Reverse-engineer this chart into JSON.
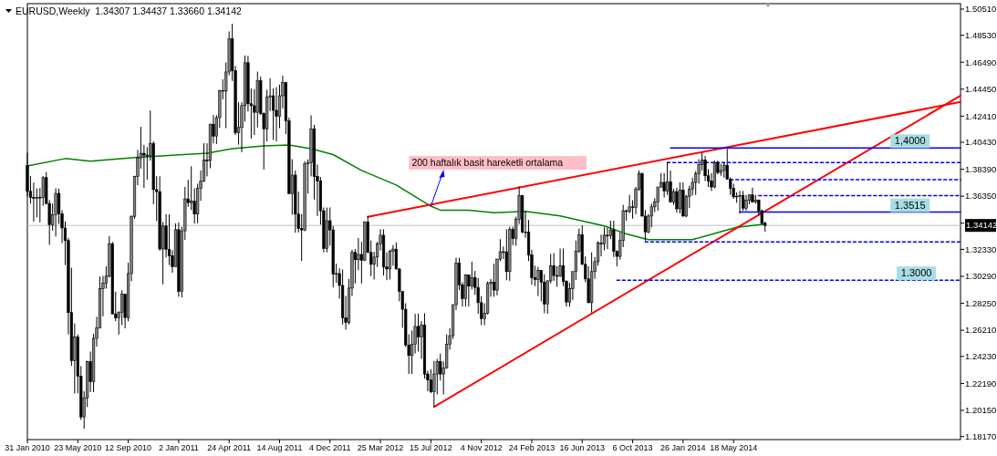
{
  "chart_data": {
    "type": "candlestick",
    "title": "EURUSD,Weekly  1.34307 1.34437 1.33660 1.34142",
    "xlim": [
      "2010-01-31",
      "2015-10-04"
    ],
    "ylim": [
      1.1794,
      1.5092
    ],
    "xticks": [
      {
        "value": "2010-01-31",
        "label": "31 Jan 2010"
      },
      {
        "value": "2010-05-23",
        "label": "23 May 2010"
      },
      {
        "value": "2010-09-12",
        "label": "12 Sep 2010"
      },
      {
        "value": "2011-01-02",
        "label": "2 Jan 2011"
      },
      {
        "value": "2011-04-24",
        "label": "24 Apr 2011"
      },
      {
        "value": "2011-08-14",
        "label": "14 Aug 2011"
      },
      {
        "value": "2011-12-04",
        "label": "4 Dec 2011"
      },
      {
        "value": "2012-03-25",
        "label": "25 Mar 2012"
      },
      {
        "value": "2012-07-15",
        "label": "15 Jul 2012"
      },
      {
        "value": "2012-11-04",
        "label": "4 Nov 2012"
      },
      {
        "value": "2013-02-24",
        "label": "24 Feb 2013"
      },
      {
        "value": "2013-06-16",
        "label": "16 Jun 2013"
      },
      {
        "value": "2013-10-06",
        "label": "6 Oct 2013"
      },
      {
        "value": "2014-01-26",
        "label": "26 Jan 2014"
      },
      {
        "value": "2014-05-18",
        "label": "18 May 2014"
      }
    ],
    "yticks": [
      {
        "value": 1.5051,
        "label": "1.50510"
      },
      {
        "value": 1.4853,
        "label": "1.48530"
      },
      {
        "value": 1.4649,
        "label": "1.46490"
      },
      {
        "value": 1.4445,
        "label": "1.44450"
      },
      {
        "value": 1.4241,
        "label": "1.42410"
      },
      {
        "value": 1.4043,
        "label": "1.40430"
      },
      {
        "value": 1.3839,
        "label": "1.38390"
      },
      {
        "value": 1.3635,
        "label": "1.36350"
      },
      {
        "value": 1.3431,
        "label": null
      },
      {
        "value": 1.3233,
        "label": "1.32330"
      },
      {
        "value": 1.3029,
        "label": "1.30290"
      },
      {
        "value": 1.2825,
        "label": "1.28250"
      },
      {
        "value": 1.2621,
        "label": "1.26210"
      },
      {
        "value": 1.2423,
        "label": "1.24230"
      },
      {
        "value": 1.2219,
        "label": "1.22190"
      },
      {
        "value": 1.2015,
        "label": "1.20150"
      },
      {
        "value": 1.1817,
        "label": "1.18170"
      }
    ],
    "ref_lines": [
      {
        "axis": "y",
        "value": 1.34142,
        "label": "1.34142",
        "color": "#c0c0c0"
      }
    ],
    "annotations": [
      {
        "text": "200 haftalık basit hareketli ortalama",
        "x": "2012-07-15",
        "y": 1.356
      },
      {
        "text": "1,4000",
        "x": "2015-06-14",
        "y": 1.4
      },
      {
        "text": "1.3515",
        "x": "2015-06-14",
        "y": 1.3515
      },
      {
        "text": "1.3000",
        "x": "2015-06-28",
        "y": 1.3
      }
    ],
    "series": [
      {
        "type": "line",
        "color": "#008000",
        "x": [
          "2010-01-31",
          "2010-04-25",
          "2010-06-20",
          "2010-09-26",
          "2010-12-26",
          "2011-03-06",
          "2011-05-01",
          "2011-07-10",
          "2011-09-04",
          "2011-10-23",
          "2011-12-11",
          "2012-02-12",
          "2012-04-29",
          "2012-07-15",
          "2012-08-05",
          "2012-10-07",
          "2012-12-02",
          "2013-02-10",
          "2013-04-28",
          "2013-08-04",
          "2013-09-22",
          "2013-11-10",
          "2014-02-16",
          "2014-04-13",
          "2014-05-25",
          "2014-07-27"
        ],
        "values": [
          1.3864,
          1.392,
          1.39,
          1.3927,
          1.3947,
          1.396,
          1.3995,
          1.4016,
          1.4023,
          1.3995,
          1.395,
          1.383,
          1.372,
          1.356,
          1.353,
          1.353,
          1.351,
          1.352,
          1.3486,
          1.341,
          1.335,
          1.3307,
          1.3307,
          1.336,
          1.34,
          1.3424
        ]
      },
      {
        "type": "line",
        "color": "#ff0000",
        "line_style": "solid",
        "x": [
          "2012-02-26",
          "2015-10-04"
        ],
        "values": [
          1.3479,
          1.4348
        ]
      },
      {
        "type": "line",
        "color": "#ff0000",
        "line_style": "solid",
        "x": [
          "2012-07-22",
          "2015-10-04"
        ],
        "values": [
          1.2042,
          1.4396
        ]
      },
      {
        "type": "line",
        "color": "#0000ff",
        "line_style": "solid",
        "x": [
          "2013-12-29",
          "2015-10-04"
        ],
        "values": [
          1.4,
          1.4
        ]
      },
      {
        "type": "line",
        "color": "#0000ff",
        "line_style": "dashed",
        "x": [
          "2013-12-22",
          "2015-10-04"
        ],
        "values": [
          1.389,
          1.389
        ]
      },
      {
        "type": "line",
        "color": "#0000ff",
        "line_style": "dashed",
        "x": [
          "2014-05-11",
          "2015-10-04"
        ],
        "values": [
          1.376,
          1.376
        ]
      },
      {
        "type": "line",
        "color": "#0000ff",
        "line_style": "dashed",
        "x": [
          "2014-07-13",
          "2015-10-04"
        ],
        "values": [
          1.364,
          1.364
        ]
      },
      {
        "type": "line",
        "color": "#0000ff",
        "line_style": "solid",
        "x": [
          "2014-06-01",
          "2015-10-04"
        ],
        "values": [
          1.3515,
          1.3515
        ]
      },
      {
        "type": "line",
        "color": "#0000ff",
        "line_style": "dashed",
        "x": [
          "2013-11-03",
          "2015-10-04"
        ],
        "values": [
          1.329,
          1.329
        ]
      },
      {
        "type": "line",
        "color": "#0000ff",
        "line_style": "dashed",
        "x": [
          "2013-09-01",
          "2015-10-04"
        ],
        "values": [
          1.3,
          1.3
        ]
      },
      {
        "color": "#000000",
        "x": [
          "2010-01-31",
          "2010-02-07",
          "2010-02-14",
          "2010-02-21",
          "2010-02-28",
          "2010-03-07",
          "2010-03-14",
          "2010-03-21",
          "2010-03-28",
          "2010-04-04",
          "2010-04-11",
          "2010-04-18",
          "2010-04-25",
          "2010-05-02",
          "2010-05-09",
          "2010-05-16",
          "2010-05-23",
          "2010-05-30",
          "2010-06-06",
          "2010-06-13",
          "2010-06-20",
          "2010-06-27",
          "2010-07-04",
          "2010-07-11",
          "2010-07-18",
          "2010-07-25",
          "2010-08-01",
          "2010-08-08",
          "2010-08-15",
          "2010-08-22",
          "2010-08-29",
          "2010-09-05",
          "2010-09-12",
          "2010-09-19",
          "2010-09-26",
          "2010-10-03",
          "2010-10-10",
          "2010-10-17",
          "2010-10-24",
          "2010-10-31",
          "2010-11-07",
          "2010-11-14",
          "2010-11-21",
          "2010-11-28",
          "2010-12-05",
          "2010-12-12",
          "2010-12-19",
          "2010-12-26",
          "2011-01-02",
          "2011-01-09",
          "2011-01-16",
          "2011-01-23",
          "2011-01-30",
          "2011-02-06",
          "2011-02-13",
          "2011-02-20",
          "2011-02-27",
          "2011-03-06",
          "2011-03-13",
          "2011-03-20",
          "2011-03-27",
          "2011-04-03",
          "2011-04-10",
          "2011-04-17",
          "2011-04-24",
          "2011-05-01",
          "2011-05-08",
          "2011-05-15",
          "2011-05-22",
          "2011-05-29",
          "2011-06-05",
          "2011-06-12",
          "2011-06-19",
          "2011-06-26",
          "2011-07-03",
          "2011-07-10",
          "2011-07-17",
          "2011-07-24",
          "2011-07-31",
          "2011-08-07",
          "2011-08-14",
          "2011-08-21",
          "2011-08-28",
          "2011-09-04",
          "2011-09-11",
          "2011-09-18",
          "2011-09-25",
          "2011-10-02",
          "2011-10-09",
          "2011-10-16",
          "2011-10-23",
          "2011-10-30",
          "2011-11-06",
          "2011-11-13",
          "2011-11-20",
          "2011-11-27",
          "2011-12-04",
          "2011-12-11",
          "2011-12-18",
          "2011-12-25",
          "2012-01-01",
          "2012-01-08",
          "2012-01-15",
          "2012-01-22",
          "2012-01-29",
          "2012-02-05",
          "2012-02-12",
          "2012-02-19",
          "2012-02-26",
          "2012-03-04",
          "2012-03-11",
          "2012-03-18",
          "2012-03-25",
          "2012-04-01",
          "2012-04-08",
          "2012-04-15",
          "2012-04-22",
          "2012-04-29",
          "2012-05-06",
          "2012-05-13",
          "2012-05-20",
          "2012-05-27",
          "2012-06-03",
          "2012-06-10",
          "2012-06-17",
          "2012-06-24",
          "2012-07-01",
          "2012-07-08",
          "2012-07-15",
          "2012-07-22",
          "2012-07-29",
          "2012-08-05",
          "2012-08-12",
          "2012-08-19",
          "2012-08-26",
          "2012-09-02",
          "2012-09-09",
          "2012-09-16",
          "2012-09-23",
          "2012-09-30",
          "2012-10-07",
          "2012-10-14",
          "2012-10-21",
          "2012-10-28",
          "2012-11-04",
          "2012-11-11",
          "2012-11-18",
          "2012-11-25",
          "2012-12-02",
          "2012-12-09",
          "2012-12-16",
          "2012-12-23",
          "2012-12-30",
          "2013-01-06",
          "2013-01-13",
          "2013-01-20",
          "2013-01-27",
          "2013-02-03",
          "2013-02-10",
          "2013-02-17",
          "2013-02-24",
          "2013-03-03",
          "2013-03-10",
          "2013-03-17",
          "2013-03-24",
          "2013-03-31",
          "2013-04-07",
          "2013-04-14",
          "2013-04-21",
          "2013-04-28",
          "2013-05-05",
          "2013-05-12",
          "2013-05-19",
          "2013-05-26",
          "2013-06-02",
          "2013-06-09",
          "2013-06-16",
          "2013-06-23",
          "2013-06-30",
          "2013-07-07",
          "2013-07-14",
          "2013-07-21",
          "2013-07-28",
          "2013-08-04",
          "2013-08-11",
          "2013-08-18",
          "2013-08-25",
          "2013-09-01",
          "2013-09-08",
          "2013-09-15",
          "2013-09-22",
          "2013-09-29",
          "2013-10-06",
          "2013-10-13",
          "2013-10-20",
          "2013-10-27",
          "2013-11-03",
          "2013-11-10",
          "2013-11-17",
          "2013-11-24",
          "2013-12-01",
          "2013-12-08",
          "2013-12-15",
          "2013-12-22",
          "2013-12-29",
          "2014-01-05",
          "2014-01-12",
          "2014-01-19",
          "2014-01-26",
          "2014-02-02",
          "2014-02-09",
          "2014-02-16",
          "2014-02-23",
          "2014-03-02",
          "2014-03-09",
          "2014-03-16",
          "2014-03-23",
          "2014-03-30",
          "2014-04-06",
          "2014-04-13",
          "2014-04-20",
          "2014-04-27",
          "2014-05-04",
          "2014-05-11",
          "2014-05-18",
          "2014-05-25",
          "2014-06-01",
          "2014-06-08",
          "2014-06-15",
          "2014-06-22",
          "2014-06-29",
          "2014-07-06",
          "2014-07-13",
          "2014-07-20",
          "2014-07-27"
        ],
        "ohlc": [
          [
            1.3867,
            1.3964,
            1.3634,
            1.3672
          ],
          [
            1.3672,
            1.3788,
            1.3579,
            1.3625
          ],
          [
            1.3625,
            1.3738,
            1.3443,
            1.362
          ],
          [
            1.362,
            1.3694,
            1.3476,
            1.3627
          ],
          [
            1.3627,
            1.3696,
            1.3437,
            1.3624
          ],
          [
            1.3624,
            1.3787,
            1.3563,
            1.3776
          ],
          [
            1.3776,
            1.3819,
            1.3574,
            1.358
          ],
          [
            1.358,
            1.3605,
            1.3267,
            1.342
          ],
          [
            1.342,
            1.358,
            1.3374,
            1.3495
          ],
          [
            1.3495,
            1.3695,
            1.333,
            1.3657
          ],
          [
            1.3657,
            1.3692,
            1.3426,
            1.3502
          ],
          [
            1.3502,
            1.353,
            1.328,
            1.3395
          ],
          [
            1.3395,
            1.3445,
            1.3114,
            1.33
          ],
          [
            1.33,
            1.332,
            1.259,
            1.2755
          ],
          [
            1.2755,
            1.3094,
            1.2352,
            1.239
          ],
          [
            1.239,
            1.2673,
            1.2143,
            1.257
          ],
          [
            1.257,
            1.259,
            1.2144,
            1.2273
          ],
          [
            1.2273,
            1.235,
            1.1943,
            1.1965
          ],
          [
            1.1965,
            1.216,
            1.1876,
            1.211
          ],
          [
            1.211,
            1.239,
            1.204,
            1.2385
          ],
          [
            1.2385,
            1.246,
            1.2154,
            1.2233
          ],
          [
            1.2233,
            1.2594,
            1.2153,
            1.256
          ],
          [
            1.256,
            1.2723,
            1.2498,
            1.264
          ],
          [
            1.264,
            1.3028,
            1.2634,
            1.2935
          ],
          [
            1.2935,
            1.3032,
            1.2727,
            1.2977
          ],
          [
            1.2977,
            1.3105,
            1.2936,
            1.303
          ],
          [
            1.303,
            1.3334,
            1.302,
            1.3276
          ],
          [
            1.3276,
            1.329,
            1.2741,
            1.2745
          ],
          [
            1.2745,
            1.2913,
            1.269,
            1.2714
          ],
          [
            1.2714,
            1.2765,
            1.2588,
            1.2758
          ],
          [
            1.2758,
            1.2924,
            1.266,
            1.2894
          ],
          [
            1.2894,
            1.2897,
            1.2636,
            1.2717
          ],
          [
            1.2717,
            1.3132,
            1.2689,
            1.305
          ],
          [
            1.305,
            1.349,
            1.2992,
            1.3483
          ],
          [
            1.3483,
            1.379,
            1.3463,
            1.3785
          ],
          [
            1.3785,
            1.3985,
            1.3719,
            1.3925
          ],
          [
            1.3925,
            1.416,
            1.3844,
            1.396
          ],
          [
            1.396,
            1.4024,
            1.3698,
            1.3946
          ],
          [
            1.3946,
            1.4006,
            1.376,
            1.3945
          ],
          [
            1.3945,
            1.4283,
            1.3904,
            1.4035
          ],
          [
            1.4035,
            1.405,
            1.3575,
            1.3685
          ],
          [
            1.3685,
            1.3787,
            1.3447,
            1.367
          ],
          [
            1.367,
            1.3786,
            1.3222,
            1.3236
          ],
          [
            1.3236,
            1.3441,
            1.2969,
            1.341
          ],
          [
            1.341,
            1.35,
            1.3172,
            1.3234
          ],
          [
            1.3234,
            1.3499,
            1.3115,
            1.3185
          ],
          [
            1.3185,
            1.3226,
            1.3057,
            1.3103
          ],
          [
            1.3103,
            1.343,
            1.31,
            1.3382
          ],
          [
            1.3382,
            1.3437,
            1.2875,
            1.2915
          ],
          [
            1.2915,
            1.3404,
            1.287,
            1.3374
          ],
          [
            1.3374,
            1.3705,
            1.3305,
            1.3615
          ],
          [
            1.3615,
            1.3759,
            1.3555,
            1.3587
          ],
          [
            1.3587,
            1.3862,
            1.353,
            1.3597
          ],
          [
            1.3597,
            1.3695,
            1.3428,
            1.35
          ],
          [
            1.35,
            1.373,
            1.343,
            1.3695
          ],
          [
            1.3695,
            1.383,
            1.36,
            1.375
          ],
          [
            1.375,
            1.4036,
            1.3742,
            1.3908
          ],
          [
            1.3908,
            1.4035,
            1.3785,
            1.3905
          ],
          [
            1.3905,
            1.4184,
            1.3846,
            1.418
          ],
          [
            1.418,
            1.425,
            1.4034,
            1.409
          ],
          [
            1.409,
            1.4248,
            1.403,
            1.423
          ],
          [
            1.423,
            1.444,
            1.4153,
            1.4435
          ],
          [
            1.4435,
            1.4519,
            1.4369,
            1.443
          ],
          [
            1.443,
            1.4648,
            1.415,
            1.4575
          ],
          [
            1.4575,
            1.4882,
            1.455,
            1.4825
          ],
          [
            1.4825,
            1.494,
            1.4507,
            1.4585
          ],
          [
            1.4585,
            1.462,
            1.4098,
            1.4115
          ],
          [
            1.4115,
            1.4346,
            1.4025,
            1.4155
          ],
          [
            1.4155,
            1.4346,
            1.3968,
            1.432
          ],
          [
            1.432,
            1.47,
            1.42,
            1.4645
          ],
          [
            1.4645,
            1.4697,
            1.4275,
            1.4335
          ],
          [
            1.4335,
            1.445,
            1.407,
            1.432
          ],
          [
            1.432,
            1.4445,
            1.4098,
            1.427
          ],
          [
            1.427,
            1.4578,
            1.4155,
            1.451
          ],
          [
            1.451,
            1.454,
            1.425,
            1.426
          ],
          [
            1.426,
            1.427,
            1.3837,
            1.4145
          ],
          [
            1.4145,
            1.444,
            1.405,
            1.4385
          ],
          [
            1.4385,
            1.4528,
            1.428,
            1.4395
          ],
          [
            1.4395,
            1.4451,
            1.406,
            1.4285
          ],
          [
            1.4285,
            1.446,
            1.405,
            1.424
          ],
          [
            1.424,
            1.448,
            1.415,
            1.4395
          ],
          [
            1.4395,
            1.4547,
            1.43,
            1.4495
          ],
          [
            1.4495,
            1.45,
            1.4105,
            1.4205
          ],
          [
            1.4205,
            1.423,
            1.3655,
            1.3655
          ],
          [
            1.3655,
            1.3915,
            1.3495,
            1.3795
          ],
          [
            1.3795,
            1.383,
            1.336,
            1.35
          ],
          [
            1.35,
            1.367,
            1.336,
            1.339
          ],
          [
            1.339,
            1.35,
            1.3145,
            1.338
          ],
          [
            1.338,
            1.39,
            1.337,
            1.388
          ],
          [
            1.388,
            1.3914,
            1.3655,
            1.389
          ],
          [
            1.389,
            1.4247,
            1.3785,
            1.4145
          ],
          [
            1.4145,
            1.4175,
            1.361,
            1.3785
          ],
          [
            1.3785,
            1.3875,
            1.3485,
            1.375
          ],
          [
            1.375,
            1.378,
            1.342,
            1.3525
          ],
          [
            1.3525,
            1.355,
            1.321,
            1.324
          ],
          [
            1.324,
            1.355,
            1.321,
            1.345
          ],
          [
            1.345,
            1.355,
            1.326,
            1.338
          ],
          [
            1.338,
            1.341,
            1.2945,
            1.3045
          ],
          [
            1.3045,
            1.3125,
            1.298,
            1.305
          ],
          [
            1.305,
            1.309,
            1.286,
            1.296
          ],
          [
            1.296,
            1.308,
            1.2665,
            1.2715
          ],
          [
            1.2715,
            1.288,
            1.2625,
            1.268
          ],
          [
            1.268,
            1.301,
            1.2665,
            1.294
          ],
          [
            1.294,
            1.323,
            1.288,
            1.321
          ],
          [
            1.321,
            1.3235,
            1.2975,
            1.3155
          ],
          [
            1.3155,
            1.332,
            1.3075,
            1.3195
          ],
          [
            1.3195,
            1.329,
            1.2975,
            1.315
          ],
          [
            1.315,
            1.3445,
            1.3145,
            1.344
          ],
          [
            1.344,
            1.3486,
            1.3205,
            1.321
          ],
          [
            1.321,
            1.33,
            1.303,
            1.312
          ],
          [
            1.312,
            1.3215,
            1.3005,
            1.3175
          ],
          [
            1.3175,
            1.329,
            1.31,
            1.3275
          ],
          [
            1.3275,
            1.3385,
            1.3225,
            1.334
          ],
          [
            1.334,
            1.3385,
            1.3035,
            1.31
          ],
          [
            1.31,
            1.321,
            1.3,
            1.3085
          ],
          [
            1.3085,
            1.323,
            1.3005,
            1.322
          ],
          [
            1.322,
            1.3265,
            1.311,
            1.3235
          ],
          [
            1.3235,
            1.3285,
            1.308,
            1.3085
          ],
          [
            1.3085,
            1.309,
            1.284,
            1.2915
          ],
          [
            1.2915,
            1.2915,
            1.264,
            1.278
          ],
          [
            1.278,
            1.2825,
            1.2495,
            1.251
          ],
          [
            1.251,
            1.259,
            1.229,
            1.243
          ],
          [
            1.243,
            1.262,
            1.229,
            1.2515
          ],
          [
            1.2515,
            1.2745,
            1.2445,
            1.265
          ],
          [
            1.265,
            1.2747,
            1.246,
            1.257
          ],
          [
            1.257,
            1.269,
            1.2405,
            1.266
          ],
          [
            1.266,
            1.275,
            1.2255,
            1.229
          ],
          [
            1.229,
            1.2315,
            1.216,
            1.2245
          ],
          [
            1.2245,
            1.2325,
            1.2145,
            1.2155
          ],
          [
            1.2155,
            1.239,
            1.2042,
            1.229
          ],
          [
            1.229,
            1.2405,
            1.2135,
            1.2385
          ],
          [
            1.2385,
            1.2445,
            1.224,
            1.229
          ],
          [
            1.229,
            1.2385,
            1.2135,
            1.2335
          ],
          [
            1.2335,
            1.259,
            1.233,
            1.2515
          ],
          [
            1.2515,
            1.2636,
            1.2475,
            1.258
          ],
          [
            1.258,
            1.2815,
            1.2555,
            1.2815
          ],
          [
            1.2815,
            1.317,
            1.2775,
            1.313
          ],
          [
            1.313,
            1.317,
            1.2925,
            1.2965
          ],
          [
            1.2965,
            1.2985,
            1.28,
            1.286
          ],
          [
            1.286,
            1.3045,
            1.28,
            1.304
          ],
          [
            1.304,
            1.304,
            1.28,
            1.2955
          ],
          [
            1.2955,
            1.314,
            1.293,
            1.302
          ],
          [
            1.302,
            1.307,
            1.289,
            1.2945
          ],
          [
            1.2945,
            1.3015,
            1.2745,
            1.283
          ],
          [
            1.283,
            1.288,
            1.266,
            1.271
          ],
          [
            1.271,
            1.2825,
            1.266,
            1.275
          ],
          [
            1.275,
            1.299,
            1.274,
            1.2975
          ],
          [
            1.2975,
            1.301,
            1.2875,
            1.2985
          ],
          [
            1.2985,
            1.3125,
            1.2875,
            1.2925
          ],
          [
            1.2925,
            1.316,
            1.2885,
            1.316
          ],
          [
            1.316,
            1.331,
            1.3145,
            1.3215
          ],
          [
            1.3215,
            1.3255,
            1.316,
            1.3215
          ],
          [
            1.3215,
            1.3385,
            1.3,
            1.3065
          ],
          [
            1.3065,
            1.3405,
            1.2995,
            1.3385
          ],
          [
            1.3385,
            1.3405,
            1.3265,
            1.3315
          ],
          [
            1.3315,
            1.348,
            1.326,
            1.346
          ],
          [
            1.346,
            1.371,
            1.3425,
            1.364
          ],
          [
            1.364,
            1.3645,
            1.3355,
            1.3365
          ],
          [
            1.3365,
            1.352,
            1.332,
            1.3365
          ],
          [
            1.3365,
            1.3455,
            1.3145,
            1.319
          ],
          [
            1.319,
            1.323,
            1.2965,
            1.302
          ],
          [
            1.302,
            1.311,
            1.2955,
            1.3005
          ],
          [
            1.3005,
            1.31,
            1.288,
            1.3075
          ],
          [
            1.3075,
            1.3075,
            1.284,
            1.2985
          ],
          [
            1.2985,
            1.3045,
            1.275,
            1.282
          ],
          [
            1.282,
            1.3,
            1.2745,
            1.2995
          ],
          [
            1.2995,
            1.32,
            1.2975,
            1.311
          ],
          [
            1.311,
            1.3205,
            1.2995,
            1.3035
          ],
          [
            1.3035,
            1.3105,
            1.295,
            1.303
          ],
          [
            1.303,
            1.324,
            1.3025,
            1.311
          ],
          [
            1.311,
            1.324,
            1.2955,
            1.299
          ],
          [
            1.299,
            1.3,
            1.28,
            1.2835
          ],
          [
            1.2835,
            1.298,
            1.28,
            1.2935
          ],
          [
            1.2935,
            1.3065,
            1.285,
            1.3065
          ],
          [
            1.3065,
            1.33,
            1.3,
            1.322
          ],
          [
            1.322,
            1.339,
            1.3205,
            1.3345
          ],
          [
            1.3345,
            1.3415,
            1.3115,
            1.312
          ],
          [
            1.312,
            1.318,
            1.2985,
            1.301
          ],
          [
            1.301,
            1.3105,
            1.2825,
            1.283
          ],
          [
            1.283,
            1.321,
            1.2755,
            1.3065
          ],
          [
            1.3065,
            1.3175,
            1.301,
            1.314
          ],
          [
            1.314,
            1.3295,
            1.311,
            1.328
          ],
          [
            1.328,
            1.3345,
            1.318,
            1.3275
          ],
          [
            1.3275,
            1.34,
            1.3225,
            1.334
          ],
          [
            1.334,
            1.3395,
            1.3235,
            1.3335
          ],
          [
            1.3335,
            1.345,
            1.331,
            1.338
          ],
          [
            1.338,
            1.345,
            1.3175,
            1.322
          ],
          [
            1.322,
            1.3225,
            1.3105,
            1.318
          ],
          [
            1.318,
            1.336,
            1.3155,
            1.33
          ],
          [
            1.33,
            1.357,
            1.325,
            1.3525
          ],
          [
            1.3525,
            1.3535,
            1.345,
            1.352
          ],
          [
            1.352,
            1.3645,
            1.3505,
            1.3555
          ],
          [
            1.3555,
            1.3605,
            1.3465,
            1.355
          ],
          [
            1.355,
            1.3705,
            1.35,
            1.369
          ],
          [
            1.369,
            1.383,
            1.3675,
            1.3805
          ],
          [
            1.3805,
            1.3815,
            1.348,
            1.3485
          ],
          [
            1.3485,
            1.353,
            1.3295,
            1.3365
          ],
          [
            1.3365,
            1.35,
            1.3355,
            1.3485
          ],
          [
            1.3485,
            1.358,
            1.34,
            1.3555
          ],
          [
            1.3555,
            1.362,
            1.3515,
            1.359
          ],
          [
            1.359,
            1.3705,
            1.3525,
            1.3705
          ],
          [
            1.3705,
            1.381,
            1.37,
            1.374
          ],
          [
            1.374,
            1.381,
            1.3625,
            1.3675
          ],
          [
            1.3675,
            1.3895,
            1.3645,
            1.3745
          ],
          [
            1.3745,
            1.383,
            1.359,
            1.359
          ],
          [
            1.359,
            1.369,
            1.357,
            1.367
          ],
          [
            1.367,
            1.37,
            1.351,
            1.354
          ],
          [
            1.354,
            1.374,
            1.3505,
            1.368
          ],
          [
            1.368,
            1.374,
            1.348,
            1.3485
          ],
          [
            1.3485,
            1.3645,
            1.3475,
            1.3635
          ],
          [
            1.3635,
            1.3715,
            1.3545,
            1.369
          ],
          [
            1.369,
            1.3775,
            1.364,
            1.374
          ],
          [
            1.374,
            1.3825,
            1.3645,
            1.3805
          ],
          [
            1.3805,
            1.3915,
            1.373,
            1.3875
          ],
          [
            1.3875,
            1.3965,
            1.383,
            1.391
          ],
          [
            1.391,
            1.394,
            1.375,
            1.379
          ],
          [
            1.379,
            1.384,
            1.3705,
            1.375
          ],
          [
            1.375,
            1.381,
            1.3675,
            1.3705
          ],
          [
            1.3705,
            1.3905,
            1.3695,
            1.389
          ],
          [
            1.389,
            1.3905,
            1.38,
            1.3815
          ],
          [
            1.3815,
            1.388,
            1.379,
            1.383
          ],
          [
            1.383,
            1.389,
            1.3775,
            1.387
          ],
          [
            1.387,
            1.3993,
            1.376,
            1.3765
          ],
          [
            1.3765,
            1.378,
            1.3645,
            1.3695
          ],
          [
            1.3695,
            1.373,
            1.3615,
            1.363
          ],
          [
            1.363,
            1.3665,
            1.3585,
            1.3635
          ],
          [
            1.3635,
            1.3675,
            1.3503,
            1.364
          ],
          [
            1.364,
            1.3675,
            1.3525,
            1.3545
          ],
          [
            1.3545,
            1.3645,
            1.3525,
            1.3605
          ],
          [
            1.3605,
            1.365,
            1.3575,
            1.3645
          ],
          [
            1.3645,
            1.37,
            1.359,
            1.359
          ],
          [
            1.359,
            1.3645,
            1.358,
            1.3605
          ],
          [
            1.3605,
            1.361,
            1.349,
            1.3525
          ],
          [
            1.3525,
            1.3535,
            1.342,
            1.343
          ],
          [
            1.34307,
            1.34437,
            1.3366,
            1.34142
          ]
        ]
      }
    ]
  }
}
